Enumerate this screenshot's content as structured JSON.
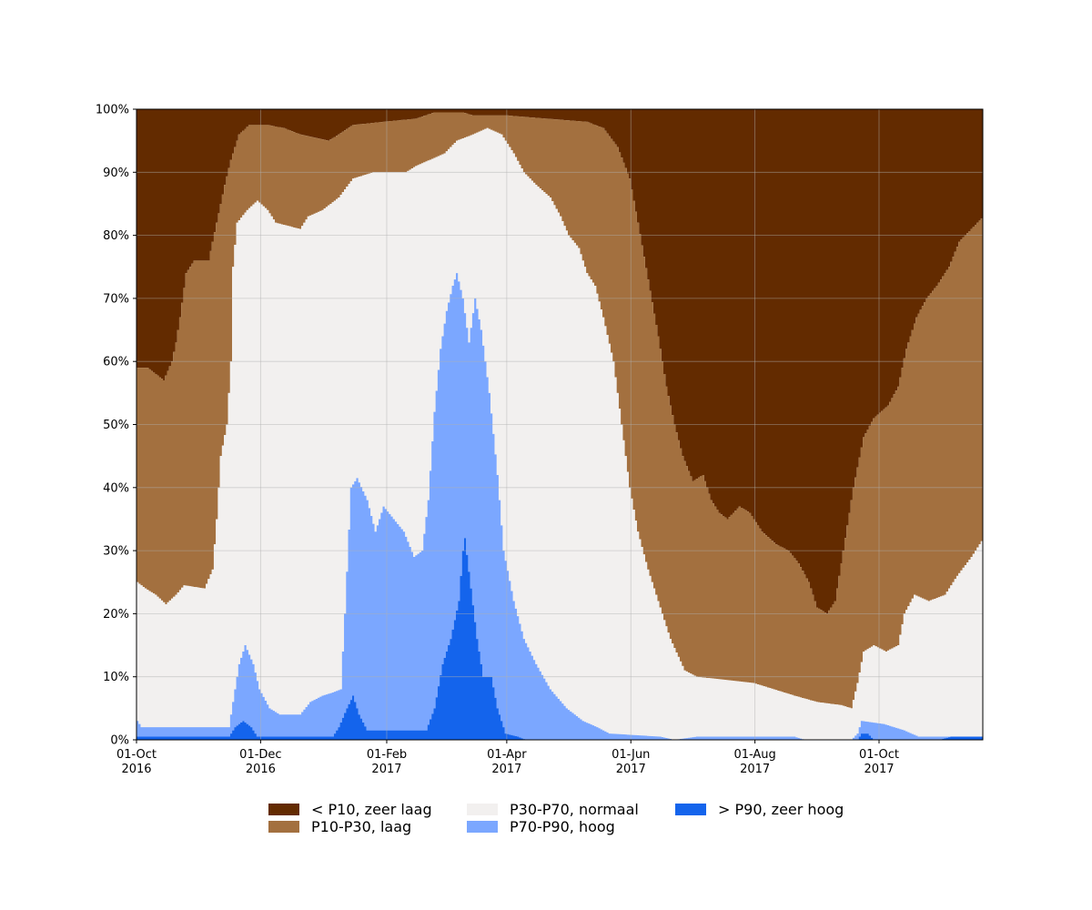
{
  "chart_data": {
    "type": "area",
    "stacked": true,
    "title": "",
    "xlabel": "",
    "ylabel": "",
    "x_ticks": [
      {
        "date": "2016-10-01",
        "label_line1": "01-Oct",
        "label_line2": "2016"
      },
      {
        "date": "2016-12-01",
        "label_line1": "01-Dec",
        "label_line2": "2016"
      },
      {
        "date": "2017-02-01",
        "label_line1": "01-Feb",
        "label_line2": "2017"
      },
      {
        "date": "2017-04-01",
        "label_line1": "01-Apr",
        "label_line2": "2017"
      },
      {
        "date": "2017-06-01",
        "label_line1": "01-Jun",
        "label_line2": "2017"
      },
      {
        "date": "2017-08-01",
        "label_line1": "01-Aug",
        "label_line2": "2017"
      },
      {
        "date": "2017-10-01",
        "label_line1": "01-Oct",
        "label_line2": "2017"
      }
    ],
    "xlim": [
      "2016-10-01",
      "2017-11-21"
    ],
    "y_ticks": [
      "0%",
      "10%",
      "20%",
      "30%",
      "40%",
      "50%",
      "60%",
      "70%",
      "80%",
      "90%",
      "100%"
    ],
    "ylim": [
      0,
      100
    ],
    "grid": true,
    "legend_position": "bottom",
    "series_colors": {
      "zeer_hoog": "#1464EC",
      "hoog": "#7BA7FF",
      "normaal": "#F2F0EF",
      "laag": "#A3703F",
      "zeer_laag": "#632B00"
    },
    "legend": [
      {
        "key": "zeer_laag",
        "label": "< P10, zeer laag",
        "color": "#632B00"
      },
      {
        "key": "laag",
        "label": "P10-P30, laag",
        "color": "#A3703F"
      },
      {
        "key": "normaal",
        "label": "P30-P70, normaal",
        "color": "#F2F0EF"
      },
      {
        "key": "hoog",
        "label": "P70-P90, hoog",
        "color": "#7BA7FF"
      },
      {
        "key": "zeer_hoog",
        "label": "> P90, zeer hoog",
        "color": "#1464EC"
      }
    ],
    "boundaries_note": "cumulative upper boundary (%) of each class at given date",
    "cumulative": {
      "zeer_hoog": [
        [
          "2016-10-01",
          0.5
        ],
        [
          "2016-11-15",
          0.5
        ],
        [
          "2016-11-18",
          2
        ],
        [
          "2016-11-22",
          3
        ],
        [
          "2016-11-26",
          2
        ],
        [
          "2016-11-29",
          0.5
        ],
        [
          "2017-01-05",
          0.5
        ],
        [
          "2017-01-08",
          2
        ],
        [
          "2017-01-12",
          5
        ],
        [
          "2017-01-15",
          7
        ],
        [
          "2017-01-18",
          4
        ],
        [
          "2017-01-22",
          1.5
        ],
        [
          "2017-02-14",
          1.5
        ],
        [
          "2017-02-20",
          1.5
        ],
        [
          "2017-02-24",
          5
        ],
        [
          "2017-02-28",
          12
        ],
        [
          "2017-03-04",
          16
        ],
        [
          "2017-03-08",
          22
        ],
        [
          "2017-03-10",
          30
        ],
        [
          "2017-03-11",
          32
        ],
        [
          "2017-03-14",
          24
        ],
        [
          "2017-03-17",
          16
        ],
        [
          "2017-03-20",
          10
        ],
        [
          "2017-03-24",
          10
        ],
        [
          "2017-03-27",
          5
        ],
        [
          "2017-03-31",
          1
        ],
        [
          "2017-04-06",
          0.5
        ],
        [
          "2017-04-10",
          0
        ],
        [
          "2017-09-20",
          0
        ],
        [
          "2017-09-22",
          1
        ],
        [
          "2017-09-25",
          1
        ],
        [
          "2017-09-28",
          0
        ],
        [
          "2017-10-30",
          0
        ],
        [
          "2017-11-05",
          0.5
        ],
        [
          "2017-11-21",
          0.5
        ]
      ],
      "hoog": [
        [
          "2016-10-01",
          3
        ],
        [
          "2016-10-03",
          2
        ],
        [
          "2016-11-15",
          2
        ],
        [
          "2016-11-17",
          6
        ],
        [
          "2016-11-20",
          12
        ],
        [
          "2016-11-23",
          15
        ],
        [
          "2016-11-27",
          12
        ],
        [
          "2016-11-30",
          8
        ],
        [
          "2016-12-05",
          5
        ],
        [
          "2016-12-10",
          4
        ],
        [
          "2016-12-20",
          4
        ],
        [
          "2016-12-25",
          6
        ],
        [
          "2016-12-31",
          7
        ],
        [
          "2017-01-05",
          7.5
        ],
        [
          "2017-01-09",
          8
        ],
        [
          "2017-01-11",
          20
        ],
        [
          "2017-01-14",
          40
        ],
        [
          "2017-01-17",
          41.5
        ],
        [
          "2017-01-22",
          38
        ],
        [
          "2017-01-26",
          33
        ],
        [
          "2017-01-30",
          37
        ],
        [
          "2017-02-04",
          35
        ],
        [
          "2017-02-09",
          33
        ],
        [
          "2017-02-14",
          29
        ],
        [
          "2017-02-18",
          30
        ],
        [
          "2017-02-21",
          38
        ],
        [
          "2017-02-24",
          52
        ],
        [
          "2017-02-27",
          62
        ],
        [
          "2017-03-02",
          68
        ],
        [
          "2017-03-05",
          72
        ],
        [
          "2017-03-07",
          74
        ],
        [
          "2017-03-10",
          70
        ],
        [
          "2017-03-13",
          63
        ],
        [
          "2017-03-16",
          70
        ],
        [
          "2017-03-19",
          65
        ],
        [
          "2017-03-23",
          55
        ],
        [
          "2017-03-27",
          42
        ],
        [
          "2017-03-30",
          30
        ],
        [
          "2017-04-04",
          22
        ],
        [
          "2017-04-09",
          16
        ],
        [
          "2017-04-15",
          12
        ],
        [
          "2017-04-22",
          8
        ],
        [
          "2017-04-30",
          5
        ],
        [
          "2017-05-08",
          3
        ],
        [
          "2017-05-15",
          2
        ],
        [
          "2017-05-21",
          1
        ],
        [
          "2017-06-15",
          0.5
        ],
        [
          "2017-06-22",
          0
        ],
        [
          "2017-07-03",
          0.5
        ],
        [
          "2017-08-20",
          0.5
        ],
        [
          "2017-08-25",
          0
        ],
        [
          "2017-09-17",
          0
        ],
        [
          "2017-09-20",
          1
        ],
        [
          "2017-09-22",
          3
        ],
        [
          "2017-10-03",
          2.5
        ],
        [
          "2017-10-13",
          1.5
        ],
        [
          "2017-10-20",
          0.5
        ],
        [
          "2017-11-21",
          0.5
        ]
      ],
      "normaal": [
        [
          "2016-10-01",
          25
        ],
        [
          "2016-10-05",
          24
        ],
        [
          "2016-10-10",
          23
        ],
        [
          "2016-10-15",
          21.5
        ],
        [
          "2016-10-20",
          23
        ],
        [
          "2016-10-24",
          24.5
        ],
        [
          "2016-11-03",
          24
        ],
        [
          "2016-11-07",
          27
        ],
        [
          "2016-11-09",
          35
        ],
        [
          "2016-11-11",
          45
        ],
        [
          "2016-11-14",
          50
        ],
        [
          "2016-11-16",
          60
        ],
        [
          "2016-11-17",
          75
        ],
        [
          "2016-11-19",
          82
        ],
        [
          "2016-11-24",
          84
        ],
        [
          "2016-11-29",
          85.5
        ],
        [
          "2016-12-04",
          84
        ],
        [
          "2016-12-08",
          82
        ],
        [
          "2016-12-20",
          81
        ],
        [
          "2016-12-24",
          83
        ],
        [
          "2016-12-31",
          84
        ],
        [
          "2017-01-08",
          86
        ],
        [
          "2017-01-15",
          89
        ],
        [
          "2017-01-25",
          90
        ],
        [
          "2017-02-10",
          90
        ],
        [
          "2017-02-15",
          91
        ],
        [
          "2017-02-22",
          92
        ],
        [
          "2017-03-01",
          93
        ],
        [
          "2017-03-07",
          95
        ],
        [
          "2017-03-15",
          96
        ],
        [
          "2017-03-22",
          97
        ],
        [
          "2017-03-29",
          96
        ],
        [
          "2017-04-04",
          93
        ],
        [
          "2017-04-09",
          90
        ],
        [
          "2017-04-15",
          88
        ],
        [
          "2017-04-22",
          86
        ],
        [
          "2017-04-27",
          83
        ],
        [
          "2017-05-01",
          80
        ],
        [
          "2017-05-06",
          78
        ],
        [
          "2017-05-10",
          74
        ],
        [
          "2017-05-14",
          72
        ],
        [
          "2017-05-18",
          67
        ],
        [
          "2017-05-23",
          60
        ],
        [
          "2017-05-27",
          50
        ],
        [
          "2017-05-31",
          40
        ],
        [
          "2017-06-04",
          33
        ],
        [
          "2017-06-09",
          27
        ],
        [
          "2017-06-15",
          21
        ],
        [
          "2017-06-20",
          16
        ],
        [
          "2017-06-27",
          11
        ],
        [
          "2017-07-03",
          10
        ],
        [
          "2017-07-31",
          9
        ],
        [
          "2017-08-10",
          8
        ],
        [
          "2017-08-20",
          7
        ],
        [
          "2017-08-31",
          6
        ],
        [
          "2017-09-12",
          5.5
        ],
        [
          "2017-09-17",
          5
        ],
        [
          "2017-09-20",
          9
        ],
        [
          "2017-09-23",
          14
        ],
        [
          "2017-09-28",
          15
        ],
        [
          "2017-10-04",
          14
        ],
        [
          "2017-10-10",
          15
        ],
        [
          "2017-10-13",
          20
        ],
        [
          "2017-10-18",
          23
        ],
        [
          "2017-10-25",
          22
        ],
        [
          "2017-11-02",
          23
        ],
        [
          "2017-11-08",
          26
        ],
        [
          "2017-11-15",
          29
        ],
        [
          "2017-11-21",
          32
        ]
      ],
      "laag": [
        [
          "2016-10-01",
          59
        ],
        [
          "2016-10-06",
          59
        ],
        [
          "2016-10-10",
          58
        ],
        [
          "2016-10-14",
          57
        ],
        [
          "2016-10-18",
          60
        ],
        [
          "2016-10-20",
          63
        ],
        [
          "2016-10-22",
          67
        ],
        [
          "2016-10-25",
          74
        ],
        [
          "2016-10-29",
          76
        ],
        [
          "2016-11-05",
          76
        ],
        [
          "2016-11-09",
          82
        ],
        [
          "2016-11-13",
          88
        ],
        [
          "2016-11-16",
          92
        ],
        [
          "2016-11-20",
          96
        ],
        [
          "2016-11-25",
          97.5
        ],
        [
          "2016-12-04",
          97.5
        ],
        [
          "2016-12-12",
          97
        ],
        [
          "2016-12-20",
          96
        ],
        [
          "2016-12-27",
          95.5
        ],
        [
          "2017-01-03",
          95
        ],
        [
          "2017-01-08",
          96
        ],
        [
          "2017-01-15",
          97.5
        ],
        [
          "2017-01-30",
          98
        ],
        [
          "2017-02-15",
          98.5
        ],
        [
          "2017-02-24",
          99.5
        ],
        [
          "2017-03-10",
          99.5
        ],
        [
          "2017-03-15",
          99
        ],
        [
          "2017-04-01",
          99
        ],
        [
          "2017-04-20",
          98.5
        ],
        [
          "2017-05-10",
          98
        ],
        [
          "2017-05-18",
          97
        ],
        [
          "2017-05-25",
          94
        ],
        [
          "2017-05-31",
          89
        ],
        [
          "2017-06-04",
          82
        ],
        [
          "2017-06-09",
          73
        ],
        [
          "2017-06-14",
          64
        ],
        [
          "2017-06-18",
          56
        ],
        [
          "2017-06-22",
          50
        ],
        [
          "2017-06-26",
          45
        ],
        [
          "2017-07-01",
          41
        ],
        [
          "2017-07-06",
          42
        ],
        [
          "2017-07-10",
          38
        ],
        [
          "2017-07-14",
          36
        ],
        [
          "2017-07-18",
          35
        ],
        [
          "2017-07-24",
          37
        ],
        [
          "2017-07-29",
          36
        ],
        [
          "2017-08-04",
          33
        ],
        [
          "2017-08-11",
          31
        ],
        [
          "2017-08-17",
          30
        ],
        [
          "2017-08-22",
          28
        ],
        [
          "2017-08-27",
          25
        ],
        [
          "2017-08-31",
          21
        ],
        [
          "2017-09-05",
          20
        ],
        [
          "2017-09-09",
          22
        ],
        [
          "2017-09-13",
          30
        ],
        [
          "2017-09-18",
          40
        ],
        [
          "2017-09-23",
          48
        ],
        [
          "2017-09-28",
          51
        ],
        [
          "2017-10-05",
          53
        ],
        [
          "2017-10-10",
          56
        ],
        [
          "2017-10-14",
          62
        ],
        [
          "2017-10-19",
          67
        ],
        [
          "2017-10-24",
          70
        ],
        [
          "2017-10-29",
          72
        ],
        [
          "2017-11-04",
          75
        ],
        [
          "2017-11-09",
          79
        ],
        [
          "2017-11-15",
          81
        ],
        [
          "2017-11-21",
          83
        ]
      ]
    }
  }
}
